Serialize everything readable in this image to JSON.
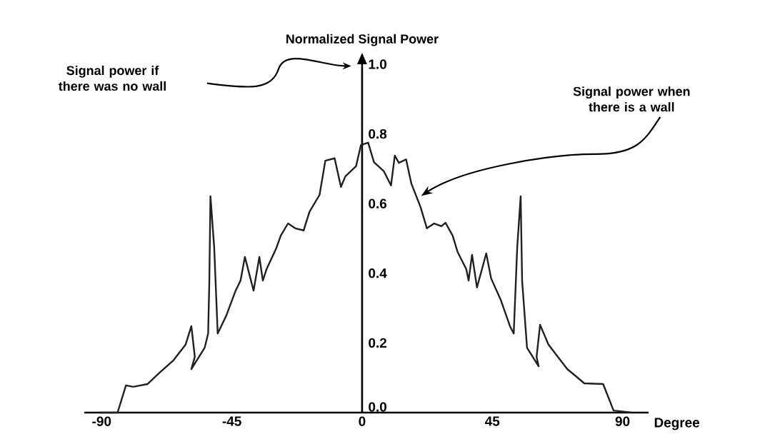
{
  "chart_data": {
    "type": "line",
    "ylabel": "Normalized Signal Power",
    "xlabel": "Degree",
    "xlim": [
      -96,
      99
    ],
    "ylim": [
      0,
      1.0
    ],
    "xticks": [
      -90,
      -45,
      0,
      45,
      90
    ],
    "yticks": [
      {
        "value": 0,
        "label": "0.0"
      },
      0.2,
      0.4,
      0.6,
      0.8,
      {
        "value": 1,
        "label": "1.0"
      }
    ],
    "grid": false,
    "marker": "none",
    "line_style": "solid",
    "series": [
      {
        "color": "#231f20",
        "x": [
          -90.7,
          -84.5,
          -81.6,
          -79.1,
          -74.1,
          -70.2,
          -65.2,
          -61.0,
          -59.0,
          -57.8,
          -59.0,
          -54.4,
          -53.2,
          -52.8,
          -52.4,
          -51.1,
          -49.9,
          -47.0,
          -43.7,
          -42.0,
          -40.5,
          -37.5,
          -35.5,
          -34.3,
          -33.0,
          -29.6,
          -28.1,
          -25.6,
          -23.1,
          -20.2,
          -18.2,
          -14.7,
          -12.7,
          -9.5,
          -7.3,
          -5.8,
          -2.1,
          -0.4,
          2.1,
          4.1,
          7.5,
          10.0,
          11.3,
          12.7,
          15.2,
          17.0,
          20.2,
          22.4,
          24.9,
          27.4,
          28.8,
          31.3,
          33.0,
          36.0,
          36.8,
          38.0,
          39.7,
          42.9,
          44.6,
          47.9,
          51.1,
          52.4,
          53.6,
          54.8,
          55.3,
          57.0,
          61.0,
          60.3,
          61.5,
          64.4,
          70.9,
          76.8,
          83.3,
          86.9,
          93.2
        ],
        "values": [
          0.0,
          0.0,
          0.078,
          0.074,
          0.082,
          0.113,
          0.15,
          0.195,
          0.248,
          0.16,
          0.125,
          0.186,
          0.227,
          0.371,
          0.621,
          0.473,
          0.227,
          0.277,
          0.35,
          0.379,
          0.447,
          0.35,
          0.447,
          0.379,
          0.412,
          0.473,
          0.508,
          0.543,
          0.529,
          0.523,
          0.576,
          0.625,
          0.723,
          0.73,
          0.648,
          0.678,
          0.707,
          0.768,
          0.775,
          0.719,
          0.693,
          0.652,
          0.738,
          0.717,
          0.727,
          0.658,
          0.59,
          0.529,
          0.543,
          0.535,
          0.545,
          0.508,
          0.461,
          0.412,
          0.379,
          0.453,
          0.359,
          0.457,
          0.385,
          0.324,
          0.248,
          0.227,
          0.473,
          0.621,
          0.379,
          0.186,
          0.133,
          0.16,
          0.252,
          0.195,
          0.125,
          0.084,
          0.082,
          0.006,
          0.0
        ]
      }
    ],
    "annotations": [
      "Signal power if there was no wall",
      "Signal power when there is a wall"
    ]
  }
}
